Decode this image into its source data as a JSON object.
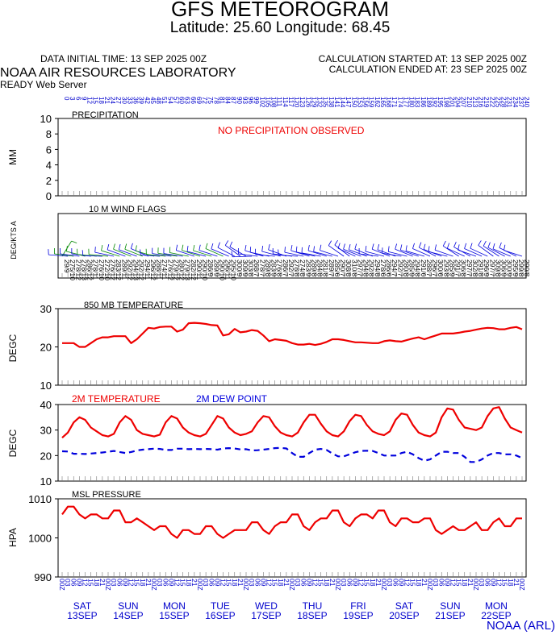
{
  "header": {
    "title": "GFS METEOROGRAM",
    "subtitle": "Latitude: 25.60 Longitude:  68.45",
    "data_initial": "DATA INITIAL TIME: 13 SEP 2025 00Z",
    "calc_started": "CALCULATION STARTED AT: 13 SEP 2025 00Z",
    "calc_ended": "CALCULATION ENDED AT: 23 SEP 2025 00Z",
    "lab": "NOAA AIR RESOURCES LABORATORY",
    "server": "READY Web Server",
    "footer": "NOAA (ARL)"
  },
  "colors": {
    "red": "#ee0000",
    "blue": "#0000dd",
    "green": "#008800",
    "navy": "#0000cc"
  },
  "forecast_hours": [
    0,
    3,
    6,
    9,
    12,
    15,
    18,
    21,
    24,
    27,
    30,
    33,
    36,
    39,
    42,
    45,
    48,
    51,
    54,
    57,
    60,
    63,
    66,
    69,
    72,
    75,
    78,
    81,
    84,
    87,
    90,
    93,
    96,
    99,
    102,
    105,
    108,
    111,
    114,
    117,
    120,
    123,
    126,
    129,
    132,
    135,
    138,
    141,
    144,
    147,
    150,
    153,
    156,
    159,
    162,
    165,
    168,
    171,
    174,
    177,
    180,
    183,
    186,
    189,
    192,
    195,
    198,
    201,
    204,
    207,
    210,
    213,
    216,
    219,
    222,
    225,
    228,
    231,
    234,
    237,
    240
  ],
  "time_labels": [
    "00Z",
    "03",
    "06",
    "09",
    "12",
    "15",
    "18",
    "21"
  ],
  "days": [
    {
      "dow": "SAT",
      "date": "13SEP"
    },
    {
      "dow": "SUN",
      "date": "14SEP"
    },
    {
      "dow": "MON",
      "date": "15SEP"
    },
    {
      "dow": "TUE",
      "date": "16SEP"
    },
    {
      "dow": "WED",
      "date": "17SEP"
    },
    {
      "dow": "THU",
      "date": "18SEP"
    },
    {
      "dow": "FRI",
      "date": "19SEP"
    },
    {
      "dow": "SAT",
      "date": "20SEP"
    },
    {
      "dow": "SUN",
      "date": "21SEP"
    },
    {
      "dow": "MON",
      "date": "22SEP"
    }
  ],
  "chart_data": [
    {
      "type": "bar",
      "title": "PRECIPITATION",
      "ylabel": "MM",
      "ylim": [
        0,
        10
      ],
      "yticks": [
        0,
        2,
        4,
        6,
        8,
        10
      ],
      "annotation": "NO PRECIPITATION OBSERVED",
      "values": []
    },
    {
      "type": "scatter",
      "title": "10 M  WIND FLAGS",
      "ylabel": "DEG/KTS  A",
      "direction_deg": [
        29,
        275,
        278,
        278,
        286,
        278,
        276,
        272,
        276,
        283,
        289,
        292,
        294,
        292,
        294,
        296,
        288,
        274,
        276,
        279,
        280,
        279,
        282,
        290,
        290,
        286,
        289,
        290,
        296,
        295,
        300,
        309,
        303,
        268,
        278,
        289,
        283,
        276,
        286,
        292,
        278,
        274,
        283,
        289,
        284,
        281,
        289,
        285,
        290,
        308,
        310,
        297,
        294,
        292,
        294,
        278,
        286,
        294,
        292,
        280,
        285,
        294,
        291,
        288,
        296,
        300,
        293,
        285,
        291,
        306,
        297,
        302,
        291,
        296,
        297,
        309,
        306,
        300,
        295,
        299,
        290
      ],
      "speed_kts": [
        9,
        10,
        12,
        13,
        12,
        11,
        10,
        10,
        12,
        12,
        11,
        12,
        13,
        12,
        11,
        12,
        11,
        11,
        12,
        12,
        12,
        13,
        12,
        11,
        10,
        9,
        9,
        10,
        11,
        10,
        9,
        9,
        8,
        7,
        7,
        8,
        9,
        8,
        7,
        7,
        8,
        8,
        9,
        8,
        8,
        8,
        7,
        6,
        7,
        8,
        8,
        7,
        8,
        8,
        8,
        6,
        6,
        7,
        7,
        8,
        9,
        8,
        6,
        7,
        7,
        6,
        8,
        9,
        7,
        8,
        7,
        8,
        8,
        9,
        7,
        8,
        9,
        9,
        9,
        8,
        8
      ]
    },
    {
      "type": "line",
      "title": "850 MB  TEMPERATURE",
      "ylabel": "DEGC",
      "ylim": [
        10,
        30
      ],
      "yticks": [
        10,
        20,
        30
      ],
      "series": [
        {
          "name": "850 MB  TEMPERATURE",
          "values": [
            21,
            21,
            21,
            20,
            20,
            21,
            22,
            22.5,
            22.5,
            22.8,
            22.8,
            22.8,
            21,
            22,
            23.5,
            25,
            24.8,
            25.2,
            25.3,
            25.3,
            24,
            24.5,
            26.2,
            26.3,
            26.2,
            26,
            25.7,
            25.6,
            23,
            23.3,
            24.7,
            23.8,
            24,
            24.4,
            24.2,
            23,
            21.5,
            22,
            21.8,
            21.6,
            21,
            20.6,
            20.6,
            20.8,
            20.5,
            20.8,
            21.3,
            22,
            22,
            21.8,
            21.5,
            21.2,
            21.2,
            21.1,
            21,
            21,
            21.5,
            21.7,
            21.5,
            21.4,
            21.8,
            22.2,
            22.5,
            22,
            22.5,
            23,
            23.5,
            23.5,
            23.5,
            23.7,
            24,
            24.2,
            24.5,
            24.8,
            25,
            24.9,
            24.6,
            24.6,
            25,
            25.2,
            24.6
          ]
        }
      ]
    },
    {
      "type": "line",
      "ylabel": "DEGC",
      "ylim": [
        10,
        40
      ],
      "yticks": [
        10,
        20,
        30,
        40
      ],
      "series": [
        {
          "name": "2M TEMPERATURE",
          "values": [
            27,
            29,
            33,
            35,
            34,
            31,
            29.5,
            28,
            27.5,
            28.5,
            33,
            35.5,
            34,
            30,
            28.5,
            28,
            27.5,
            28.2,
            33,
            35.5,
            34.5,
            31,
            29,
            28,
            27.5,
            28.5,
            32,
            35.5,
            34.5,
            31,
            29,
            28,
            28.5,
            29.5,
            33,
            35.5,
            35,
            31.5,
            29,
            28,
            27.5,
            29,
            33,
            36,
            36,
            32.5,
            29.5,
            28,
            27.5,
            29.5,
            33.5,
            36,
            35.5,
            32,
            29.5,
            28.5,
            28,
            29.5,
            34,
            36.5,
            36,
            32,
            29,
            28,
            27.5,
            29,
            35,
            38.5,
            38,
            34,
            31,
            30.5,
            30,
            31,
            35.5,
            38.5,
            39,
            34.5,
            31,
            30,
            29
          ]
        },
        {
          "name": "2M  DEW POINT",
          "values": [
            21.7,
            21.6,
            20.7,
            20.7,
            20.6,
            20.8,
            21,
            21.2,
            21.5,
            21.8,
            21.4,
            21,
            21.4,
            22,
            22.3,
            22.5,
            22.7,
            22.6,
            22.2,
            22.2,
            22.7,
            22.7,
            22.5,
            22.6,
            22.5,
            22.6,
            22.5,
            22.3,
            22.8,
            22.9,
            22.8,
            22.4,
            22.5,
            22,
            22.1,
            22.3,
            22.6,
            22.9,
            23,
            22.8,
            21,
            19.5,
            19.5,
            21,
            22.3,
            22.6,
            22.2,
            20.8,
            19.7,
            19.7,
            20.5,
            21.3,
            21.8,
            21.9,
            21.8,
            21,
            20,
            20,
            20,
            21,
            21.5,
            20.5,
            19,
            18,
            18.5,
            20,
            21.5,
            21.5,
            21,
            21,
            19.5,
            17.5,
            17.5,
            18.5,
            20,
            21,
            21,
            20.5,
            20.5,
            20,
            19
          ]
        }
      ]
    },
    {
      "type": "line",
      "title": "MSL PRESSURE",
      "ylabel": "HPA",
      "ylim": [
        990,
        1010
      ],
      "yticks": [
        990,
        1000,
        1010
      ],
      "series": [
        {
          "name": "MSL PRESSURE",
          "values": [
            1006,
            1008,
            1008,
            1006,
            1005,
            1006,
            1006,
            1005,
            1005,
            1007,
            1007,
            1004,
            1004,
            1005,
            1004,
            1003,
            1002,
            1003,
            1003,
            1001,
            1000,
            1002,
            1002,
            1001,
            1001,
            1003,
            1003,
            1001,
            1000,
            1001,
            1002,
            1002,
            1002,
            1004,
            1004,
            1002,
            1001,
            1003,
            1004,
            1004,
            1006,
            1006,
            1003,
            1002,
            1004,
            1005,
            1005,
            1007,
            1007,
            1004,
            1003,
            1005,
            1006,
            1006,
            1005,
            1007,
            1007,
            1004,
            1003,
            1005,
            1005,
            1004,
            1004,
            1005,
            1005,
            1002,
            1001,
            1002,
            1003,
            1002,
            1002,
            1003,
            1004,
            1002,
            1002,
            1004,
            1005,
            1003,
            1003,
            1005,
            1005
          ]
        }
      ]
    }
  ]
}
